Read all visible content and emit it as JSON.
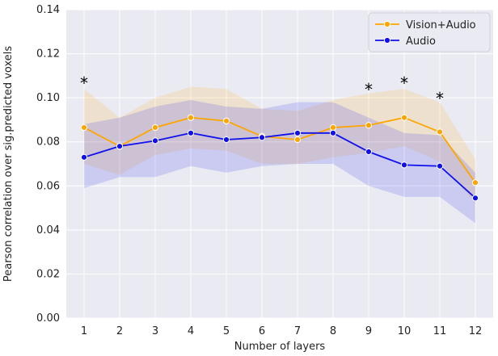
{
  "chart_data": {
    "type": "line",
    "xlabel": "Number of layers",
    "ylabel": "Pearson correlation over sig.predicted voxels",
    "x": [
      1,
      2,
      3,
      4,
      5,
      6,
      7,
      8,
      9,
      10,
      11,
      12
    ],
    "ylim": [
      0.0,
      0.14
    ],
    "yticks": [
      "0.00",
      "0.02",
      "0.04",
      "0.06",
      "0.08",
      "0.10",
      "0.12",
      "0.14"
    ],
    "xticks": [
      "1",
      "2",
      "3",
      "4",
      "5",
      "6",
      "7",
      "8",
      "9",
      "10",
      "11",
      "12"
    ],
    "grid": true,
    "legend_position": "top-right",
    "series": [
      {
        "name": "Vision+Audio",
        "color": "#FFA500",
        "values": [
          0.0865,
          0.078,
          0.0865,
          0.091,
          0.0895,
          0.0825,
          0.081,
          0.0865,
          0.0875,
          0.091,
          0.0845,
          0.0615
        ],
        "lower": [
          0.07,
          0.065,
          0.074,
          0.077,
          0.076,
          0.07,
          0.07,
          0.073,
          0.075,
          0.078,
          0.071,
          0.052
        ],
        "upper": [
          0.104,
          0.091,
          0.1,
          0.105,
          0.104,
          0.095,
          0.094,
          0.099,
          0.102,
          0.104,
          0.098,
          0.072
        ]
      },
      {
        "name": "Audio",
        "color": "#1010EE",
        "values": [
          0.073,
          0.078,
          0.0805,
          0.084,
          0.081,
          0.082,
          0.084,
          0.084,
          0.0755,
          0.0695,
          0.069,
          0.0545
        ],
        "lower": [
          0.059,
          0.064,
          0.064,
          0.069,
          0.066,
          0.069,
          0.07,
          0.07,
          0.06,
          0.055,
          0.055,
          0.043
        ],
        "upper": [
          0.088,
          0.091,
          0.096,
          0.099,
          0.096,
          0.095,
          0.098,
          0.098,
          0.091,
          0.084,
          0.083,
          0.066
        ]
      }
    ],
    "annotations": [
      {
        "x": 1,
        "y": 0.107,
        "text": "*"
      },
      {
        "x": 9,
        "y": 0.104,
        "text": "*"
      },
      {
        "x": 10,
        "y": 0.107,
        "text": "*"
      },
      {
        "x": 11,
        "y": 0.1,
        "text": "*"
      }
    ]
  }
}
